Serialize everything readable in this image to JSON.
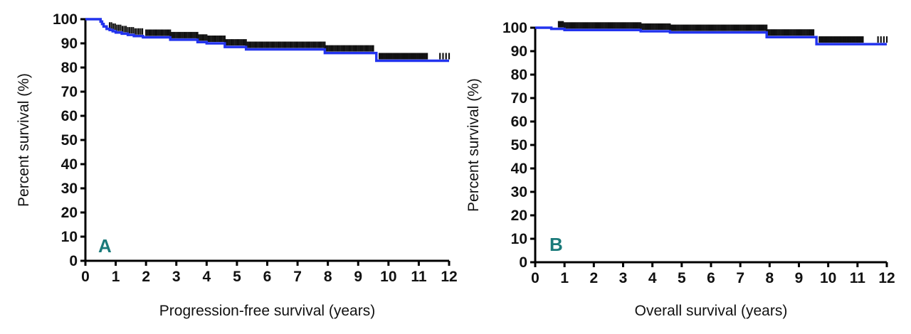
{
  "colors": {
    "curve": "#2233ee",
    "censor": "#111111",
    "panel_letter": "#1a7a7a"
  },
  "chart_data": [
    {
      "type": "line",
      "panel_label": "A",
      "xlabel": "Progression-free survival (years)",
      "ylabel": "Percent survival (%)",
      "xlim": [
        0,
        12
      ],
      "ylim": [
        0,
        100
      ],
      "x_ticks": [
        "0",
        "1",
        "2",
        "3",
        "4",
        "5",
        "6",
        "7",
        "8",
        "9",
        "10",
        "11",
        "12"
      ],
      "y_ticks": [
        "0",
        "10",
        "20",
        "30",
        "40",
        "50",
        "60",
        "70",
        "80",
        "90",
        "100"
      ],
      "grid": false,
      "series": [
        {
          "steps": [
            [
              0,
              100
            ],
            [
              0.45,
              100
            ],
            [
              0.5,
              99
            ],
            [
              0.55,
              98
            ],
            [
              0.6,
              97
            ],
            [
              0.7,
              96
            ],
            [
              0.8,
              95.5
            ],
            [
              0.9,
              95
            ],
            [
              1.0,
              94.5
            ],
            [
              1.2,
              94
            ],
            [
              1.4,
              93.5
            ],
            [
              1.6,
              93
            ],
            [
              1.9,
              92.5
            ],
            [
              2.8,
              91.5
            ],
            [
              3.7,
              90.5
            ],
            [
              4.0,
              90
            ],
            [
              4.6,
              88.5
            ],
            [
              5.3,
              87.5
            ],
            [
              7.9,
              86
            ],
            [
              9.6,
              82.8
            ],
            [
              12,
              82.8
            ]
          ],
          "censor_ranges": [
            [
              0.8,
              1.9,
              0.06
            ],
            [
              2.0,
              2.8,
              0.05
            ],
            [
              2.8,
              3.7,
              0.05
            ],
            [
              3.7,
              4.6,
              0.05
            ],
            [
              4.6,
              5.3,
              0.05
            ],
            [
              5.3,
              7.9,
              0.05
            ],
            [
              7.9,
              9.5,
              0.05
            ],
            [
              9.7,
              11.3,
              0.045
            ]
          ],
          "censor_points": [
            11.7,
            11.8,
            11.9,
            12.0
          ]
        }
      ]
    },
    {
      "type": "line",
      "panel_label": "B",
      "xlabel": "Overall survival (years)",
      "ylabel": "Percent survival (%)",
      "xlim": [
        0,
        12
      ],
      "ylim": [
        0,
        100
      ],
      "x_ticks": [
        "0",
        "1",
        "2",
        "3",
        "4",
        "5",
        "6",
        "7",
        "8",
        "9",
        "10",
        "11",
        "12"
      ],
      "y_ticks": [
        "0",
        "10",
        "20",
        "30",
        "40",
        "50",
        "60",
        "70",
        "80",
        "90",
        "100"
      ],
      "grid": false,
      "series": [
        {
          "steps": [
            [
              0,
              100
            ],
            [
              0.5,
              100
            ],
            [
              0.55,
              99.5
            ],
            [
              1.0,
              99
            ],
            [
              3.6,
              98.5
            ],
            [
              4.6,
              98
            ],
            [
              7.9,
              96
            ],
            [
              9.6,
              93
            ],
            [
              12,
              93
            ]
          ],
          "censor_ranges": [
            [
              0.8,
              3.6,
              0.05
            ],
            [
              3.6,
              4.6,
              0.05
            ],
            [
              4.6,
              7.9,
              0.05
            ],
            [
              7.9,
              9.5,
              0.05
            ],
            [
              9.7,
              11.2,
              0.045
            ]
          ],
          "censor_points": [
            11.7,
            11.8,
            11.9,
            12.0
          ]
        }
      ]
    }
  ]
}
